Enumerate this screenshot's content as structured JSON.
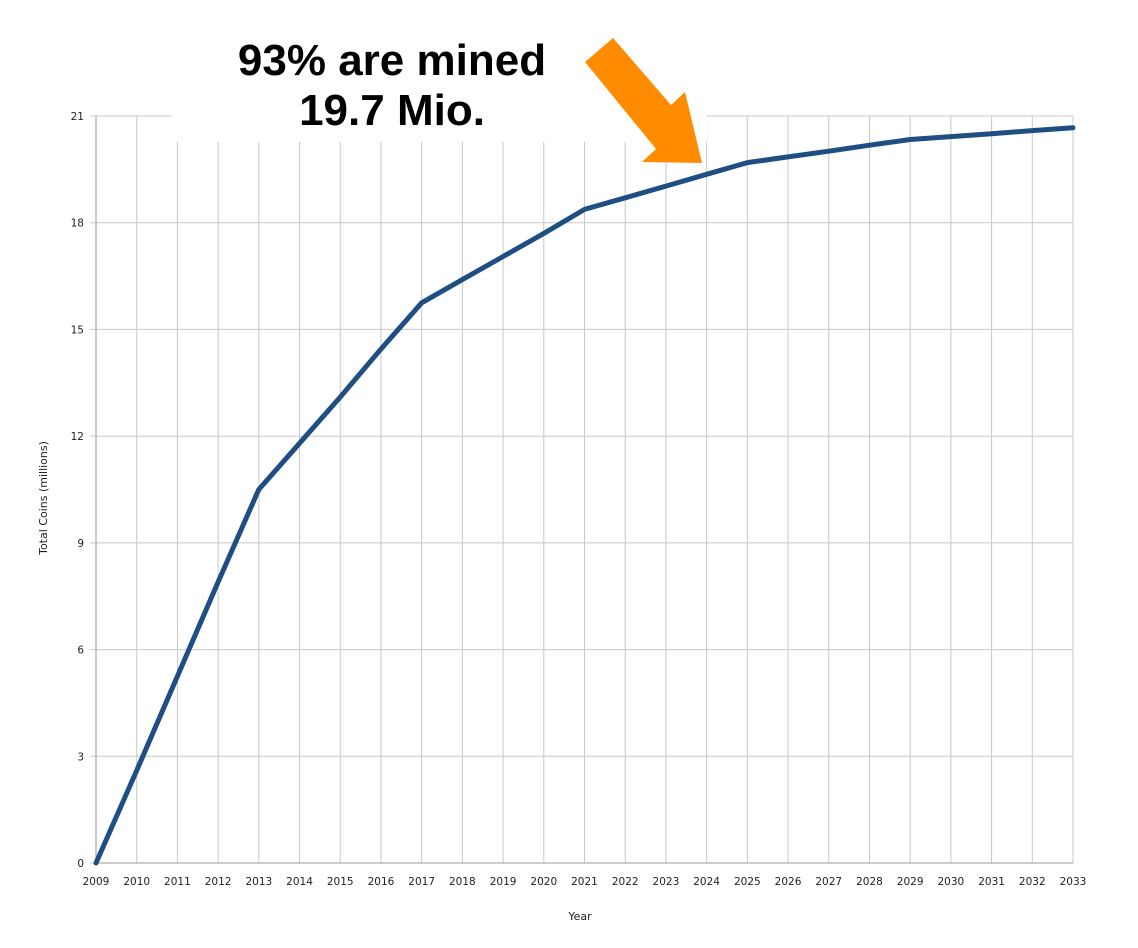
{
  "chart_data": {
    "type": "line",
    "title": "",
    "xlabel": "Year",
    "ylabel": "Total Coins (millions)",
    "x": [
      "2009",
      "2010",
      "2011",
      "2012",
      "2013",
      "2014",
      "2015",
      "2016",
      "2017",
      "2018",
      "2019",
      "2020",
      "2021",
      "2022",
      "2023",
      "2024",
      "2025",
      "2026",
      "2027",
      "2028",
      "2029",
      "2030",
      "2031",
      "2032",
      "2033"
    ],
    "y_ticks": [
      "0",
      "3",
      "6",
      "9",
      "12",
      "15",
      "18",
      "21"
    ],
    "ylim": [
      0,
      21
    ],
    "grid": true,
    "legend": "none",
    "series": [
      {
        "color": "#1f4e82",
        "values": [
          0,
          2.6,
          5.25,
          7.9,
          10.5,
          11.8,
          13.1,
          14.45,
          15.75,
          16.4,
          17.05,
          17.7,
          18.375,
          18.7,
          19.03,
          19.36,
          19.69,
          19.85,
          20.01,
          20.18,
          20.34,
          20.42,
          20.5,
          20.59,
          20.67
        ]
      }
    ],
    "annotations": [
      {
        "line1": "93% are mined",
        "line2": "19.7 Mio.",
        "arrow_color": "#ff8c00"
      }
    ]
  }
}
